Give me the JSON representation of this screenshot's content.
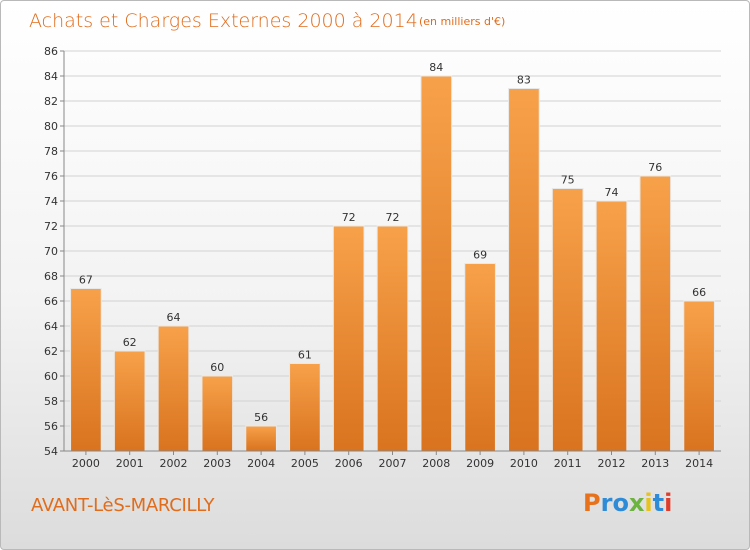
{
  "title": "Achats et Charges Externes 2000 à 2014",
  "subtitle": "(en milliers d'€)",
  "place": "AVANT-LèS-MARCILLY",
  "brand": {
    "text": "Proxiti",
    "letter_colors": [
      "#e8721c",
      "#2e8bd8",
      "#2e8bd8",
      "#6db33f",
      "#e8c31c",
      "#2e8bd8",
      "#e03c2c"
    ]
  },
  "colors": {
    "bar_light": "#f7a14a",
    "bar_dark": "#d9731f",
    "accent": "#e06c1c"
  },
  "chart_data": {
    "type": "bar",
    "categories": [
      "2000",
      "2001",
      "2002",
      "2003",
      "2004",
      "2005",
      "2006",
      "2007",
      "2008",
      "2009",
      "2010",
      "2011",
      "2012",
      "2013",
      "2014"
    ],
    "values": [
      67,
      62,
      64,
      60,
      56,
      61,
      72,
      72,
      84,
      69,
      83,
      75,
      74,
      76,
      66
    ],
    "ylim": [
      54,
      86
    ],
    "ytick_step": 2,
    "grid": true
  }
}
